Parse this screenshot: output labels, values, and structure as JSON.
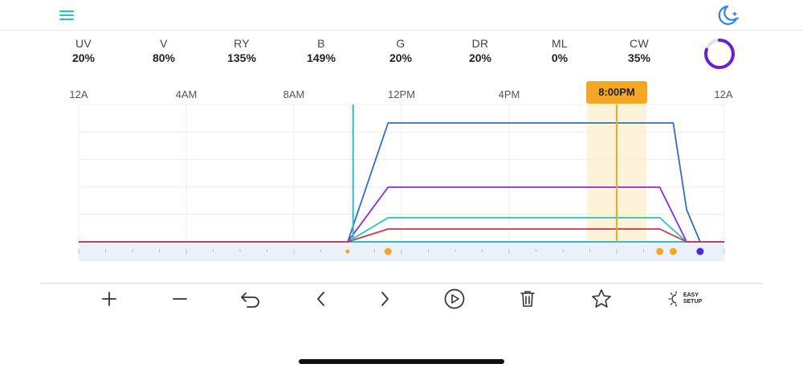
{
  "header": {
    "menu_icon": "hamburger-menu-icon",
    "night_mode_icon": "moon-stars-icon",
    "accent": "#2bbfc4",
    "moon_color": "#2f7df6"
  },
  "channels": [
    {
      "name": "UV",
      "value": "20%"
    },
    {
      "name": "V",
      "value": "80%"
    },
    {
      "name": "RY",
      "value": "135%"
    },
    {
      "name": "B",
      "value": "149%"
    },
    {
      "name": "G",
      "value": "20%"
    },
    {
      "name": "DR",
      "value": "20%"
    },
    {
      "name": "ML",
      "value": "0%"
    },
    {
      "name": "CW",
      "value": "35%"
    }
  ],
  "status_ring": {
    "color": "#6a1fd1",
    "fraction": 0.8
  },
  "timeline": {
    "tick_labels": [
      "12A",
      "4AM",
      "8AM",
      "12PM",
      "4PM",
      "12A"
    ],
    "current_time_label": "8:00PM",
    "current_time_hours": 20,
    "highlight_color": "#f5a623"
  },
  "chart_data": {
    "type": "line",
    "x_unit": "hours",
    "xlim": [
      0,
      24
    ],
    "ylim": [
      0,
      150
    ],
    "grid": true,
    "series": [
      {
        "color": "#2e6fc4",
        "points": [
          [
            0,
            0
          ],
          [
            10,
            0
          ],
          [
            11.5,
            148
          ],
          [
            22.1,
            148
          ],
          [
            22.6,
            40
          ],
          [
            23.1,
            0
          ],
          [
            24,
            0
          ]
        ]
      },
      {
        "color": "#8a2be2",
        "points": [
          [
            0,
            0
          ],
          [
            10,
            0
          ],
          [
            11.5,
            68
          ],
          [
            21.6,
            68
          ],
          [
            22.6,
            0
          ],
          [
            24,
            0
          ]
        ]
      },
      {
        "color": "#2bbfc4",
        "points": [
          [
            0,
            0
          ],
          [
            10,
            0
          ],
          [
            11.5,
            30
          ],
          [
            21.6,
            30
          ],
          [
            22.6,
            0
          ],
          [
            24,
            0
          ]
        ]
      },
      {
        "color": "#d0334f",
        "points": [
          [
            0,
            0
          ],
          [
            10,
            0
          ],
          [
            11.5,
            16
          ],
          [
            21.6,
            16
          ],
          [
            22.6,
            0
          ],
          [
            24,
            0
          ]
        ]
      }
    ],
    "marker_line_hours": 10.2,
    "marker_line_color": "#2bbfc4",
    "points_on_track": [
      {
        "hour": 10,
        "color": "#f5a623",
        "size": "small"
      },
      {
        "hour": 11.5,
        "color": "#f5a623",
        "size": "large"
      },
      {
        "hour": 21.6,
        "color": "#f5a623",
        "size": "large"
      },
      {
        "hour": 22.1,
        "color": "#f5a623",
        "size": "large"
      },
      {
        "hour": 23.1,
        "color": "#4b2bd6",
        "size": "large"
      }
    ]
  },
  "toolbar": {
    "items": [
      {
        "name": "add-button",
        "icon": "plus-icon"
      },
      {
        "name": "remove-button",
        "icon": "minus-icon"
      },
      {
        "name": "undo-button",
        "icon": "undo-icon"
      },
      {
        "name": "previous-button",
        "icon": "chevron-left-icon"
      },
      {
        "name": "next-button",
        "icon": "chevron-right-icon"
      },
      {
        "name": "play-button",
        "icon": "play-circle-icon"
      },
      {
        "name": "delete-button",
        "icon": "trash-icon"
      },
      {
        "name": "favorite-button",
        "icon": "star-icon"
      }
    ],
    "easy_setup_line1": "EASY",
    "easy_setup_line2": "SETUP"
  }
}
